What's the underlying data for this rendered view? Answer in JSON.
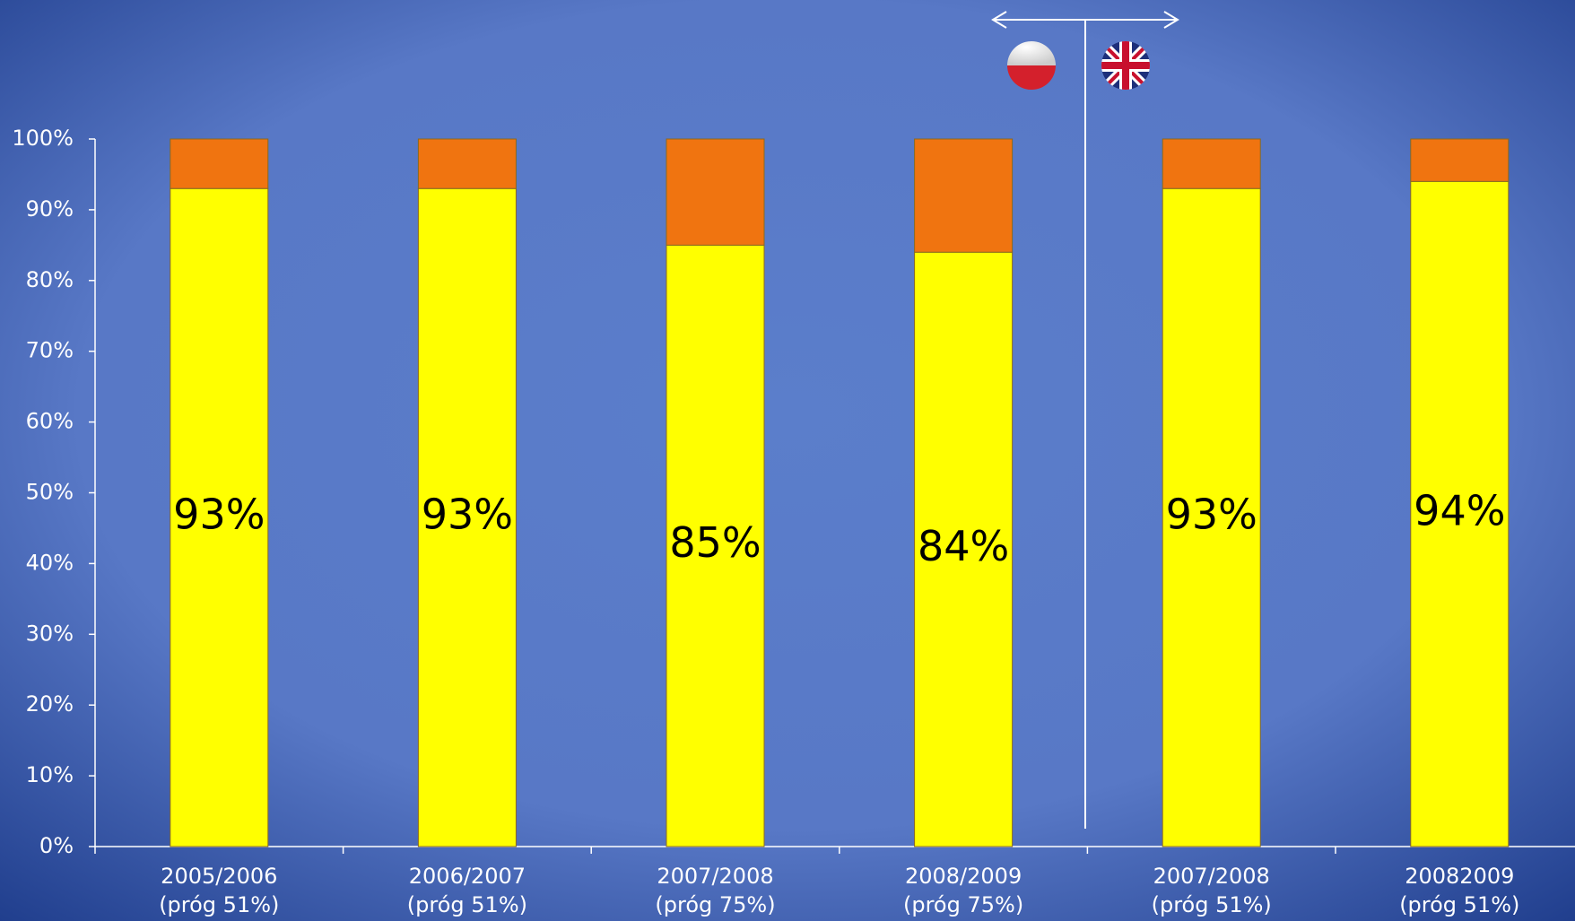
{
  "chart_data": {
    "type": "stacked-bar",
    "categories": [
      [
        "2005/2006",
        "(próg 51%)"
      ],
      [
        "2006/2007",
        "(próg 51%)"
      ],
      [
        "2007/2008",
        "(próg 75%)"
      ],
      [
        "2008/2009",
        "(próg 75%)"
      ],
      [
        "2007/2008",
        "(próg 51%)"
      ],
      [
        "20082009",
        "(próg 51%)"
      ]
    ],
    "series": [
      {
        "color": "#ffff00",
        "values": [
          93,
          93,
          85,
          84,
          93,
          94
        ],
        "value_labels": [
          "93%",
          "93%",
          "85%",
          "84%",
          "93%",
          "94%"
        ]
      },
      {
        "color": "#f07410",
        "values": [
          7,
          7,
          15,
          16,
          7,
          6
        ]
      }
    ],
    "ylim": [
      0,
      100
    ],
    "yticks": [
      {
        "value": 0,
        "label": "0%"
      },
      {
        "value": 10,
        "label": "10%"
      },
      {
        "value": 20,
        "label": "20%"
      },
      {
        "value": 30,
        "label": "30%"
      },
      {
        "value": 40,
        "label": "40%"
      },
      {
        "value": 50,
        "label": "50%"
      },
      {
        "value": 60,
        "label": "60%"
      },
      {
        "value": 70,
        "label": "70%"
      },
      {
        "value": 80,
        "label": "80%"
      },
      {
        "value": 90,
        "label": "90%"
      },
      {
        "value": 100,
        "label": "100%"
      }
    ]
  }
}
